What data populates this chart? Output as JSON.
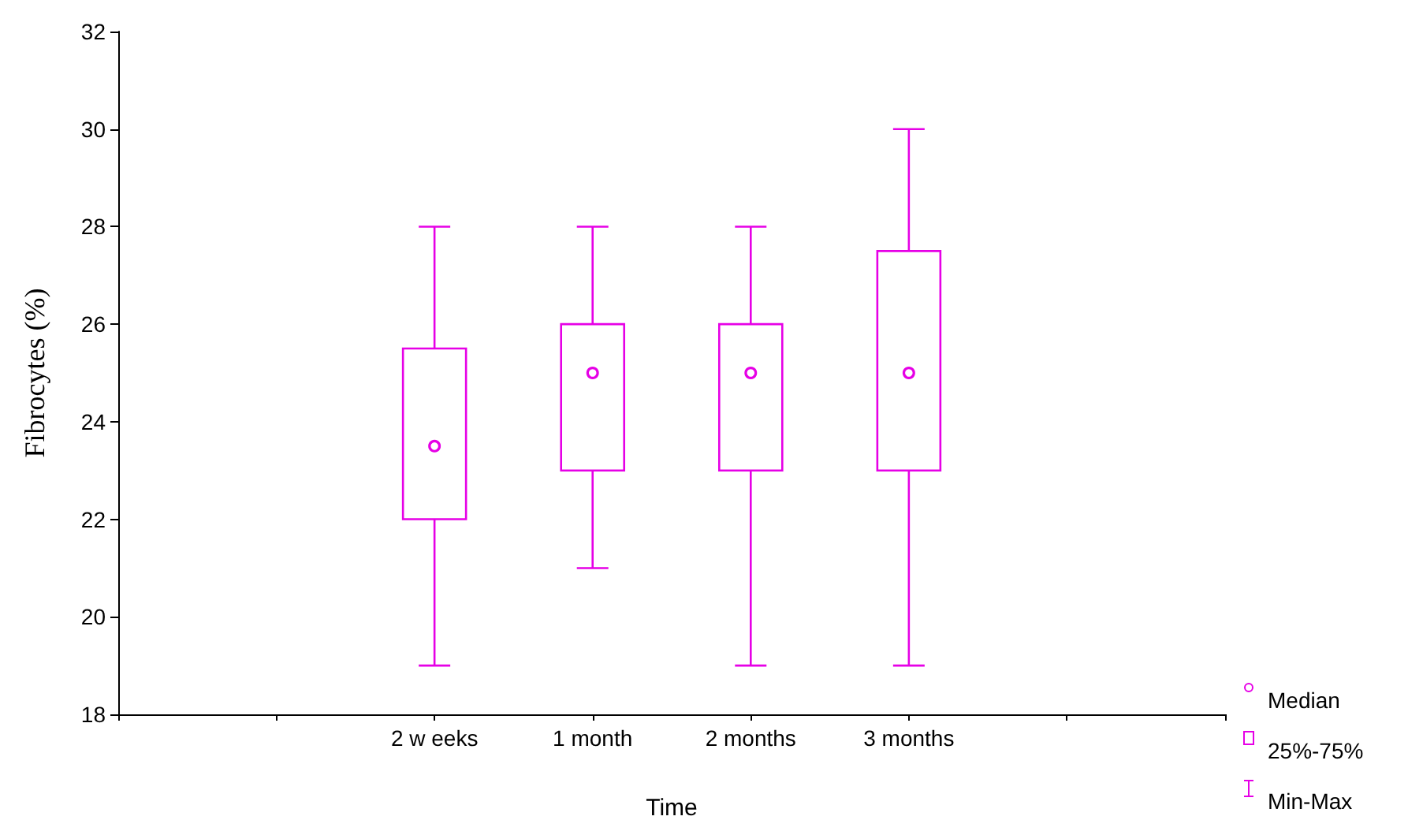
{
  "chart_data": {
    "type": "box",
    "xlabel": "Time",
    "ylabel": "Fibrocytes (%)",
    "categories": [
      null,
      null,
      "2 w eeks",
      "1 month",
      "2 months",
      "3 months",
      null,
      null
    ],
    "boxes": [
      null,
      null,
      {
        "low": 19,
        "q1": 22,
        "median": 23.5,
        "q3": 25.5,
        "high": 28
      },
      {
        "low": 21,
        "q1": 23,
        "median": 25,
        "q3": 26,
        "high": 28
      },
      {
        "low": 19,
        "q1": 23,
        "median": 25,
        "q3": 26,
        "high": 28
      },
      {
        "low": 19,
        "q1": 23,
        "median": 25,
        "q3": 27.5,
        "high": 30
      },
      null,
      null
    ],
    "color": "#e600e6",
    "ylim": [
      18,
      32
    ],
    "yticks": [
      18,
      20,
      22,
      24,
      26,
      28,
      30,
      32
    ],
    "annotations": [
      "Median",
      "25%-75%",
      "Min-Max"
    ]
  }
}
